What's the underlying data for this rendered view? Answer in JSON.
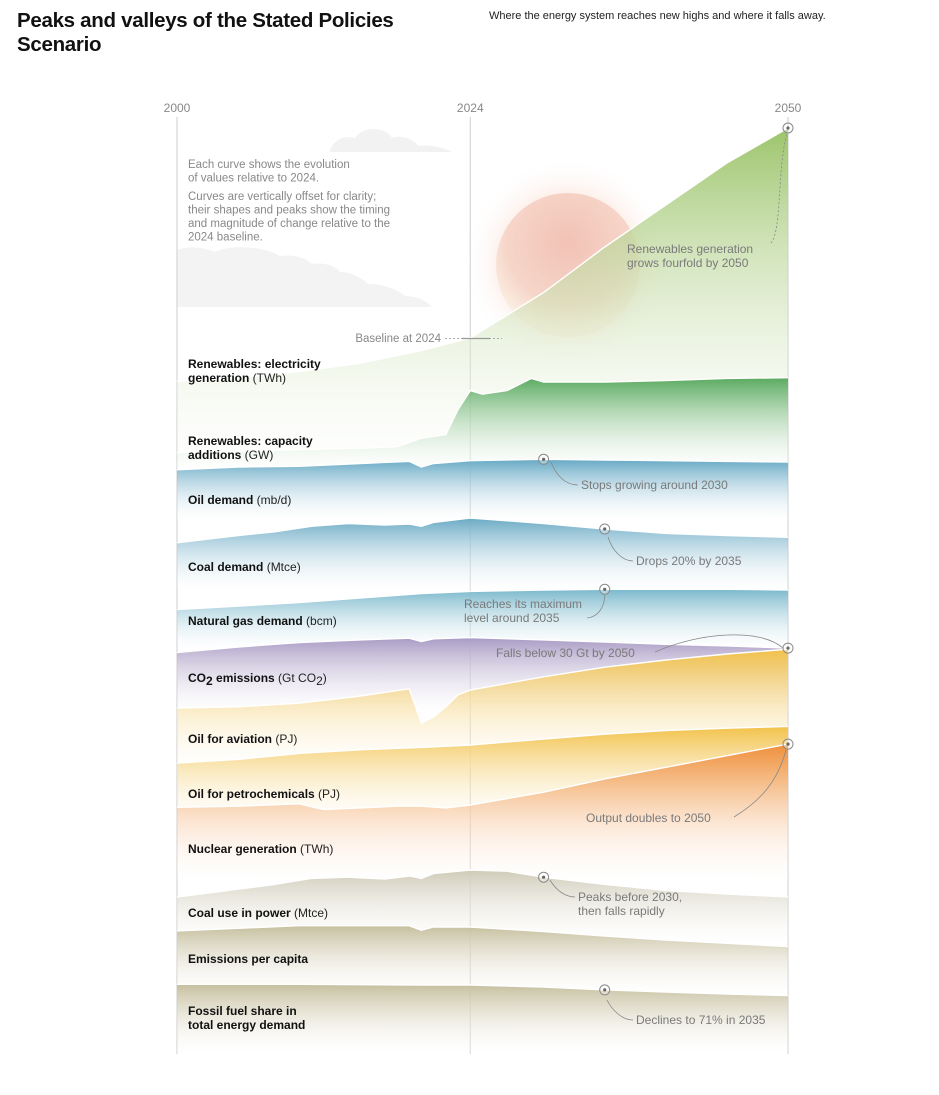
{
  "header": {
    "title": "Peaks and valleys of the Stated Policies Scenario",
    "subtitle": "Where the energy system reaches new highs and where it falls away."
  },
  "notes": [
    [
      "Each curve shows the evolution",
      "of values relative to 2024."
    ],
    [
      "Curves are vertically offset for clarity;",
      "their shapes and peaks show the timing",
      "and magnitude of change relative to the",
      "2024 baseline."
    ]
  ],
  "baseline_label": "Baseline at 2024",
  "chart_data": {
    "type": "area",
    "title": "Peaks and valleys of the Stated Policies Scenario",
    "xlabel": "",
    "ylabel": "",
    "x_ticks": [
      "2000",
      "2024",
      "2050"
    ],
    "xlim": [
      2000,
      2050
    ],
    "baseline_year": 2024,
    "value_note": "Values are relative to 2024 level (2024 = 1.0); curves vertically offset",
    "series": [
      {
        "name": "Renewables: electricity generation",
        "label_bold": [
          "Renewables: electricity",
          "generation"
        ],
        "unit": "(TWh)",
        "color": "#9cc46a",
        "years": [
          2000,
          2005,
          2010,
          2015,
          2020,
          2024,
          2030,
          2035,
          2040,
          2045,
          2050
        ],
        "values": [
          0.38,
          0.43,
          0.52,
          0.64,
          0.82,
          1.0,
          1.65,
          2.3,
          2.9,
          3.5,
          4.0
        ]
      },
      {
        "name": "Renewables: capacity additions",
        "label_bold": [
          "Renewables: capacity",
          "additions"
        ],
        "unit": "(GW)",
        "color": "#5aaa60",
        "years": [
          2000,
          2005,
          2010,
          2015,
          2018,
          2020,
          2022,
          2023,
          2024,
          2025,
          2027,
          2029,
          2030,
          2035,
          2040,
          2045,
          2050
        ],
        "values": [
          0.02,
          0.04,
          0.06,
          0.08,
          0.1,
          0.22,
          0.27,
          0.62,
          0.88,
          0.83,
          0.88,
          1.05,
          1.0,
          1.0,
          1.02,
          1.05,
          1.06
        ]
      },
      {
        "name": "Oil demand",
        "label_bold": [
          "Oil demand"
        ],
        "unit": "(mb/d)",
        "color": "#65a8c4",
        "years": [
          2000,
          2005,
          2010,
          2015,
          2019,
          2020,
          2021,
          2024,
          2030,
          2035,
          2040,
          2045,
          2050
        ],
        "values": [
          0.86,
          0.9,
          0.91,
          0.95,
          0.98,
          0.9,
          0.95,
          0.99,
          1.01,
          1.0,
          0.99,
          0.98,
          0.97
        ]
      },
      {
        "name": "Coal demand",
        "label_bold": [
          "Coal demand"
        ],
        "unit": "(Mtce)",
        "color": "#6aaac4",
        "years": [
          2000,
          2005,
          2008,
          2011,
          2014,
          2017,
          2019,
          2020,
          2021,
          2024,
          2030,
          2035,
          2040,
          2045,
          2050
        ],
        "values": [
          0.55,
          0.68,
          0.75,
          0.85,
          0.9,
          0.87,
          0.89,
          0.85,
          0.92,
          1.0,
          0.9,
          0.8,
          0.72,
          0.68,
          0.65
        ]
      },
      {
        "name": "Natural gas demand",
        "label_bold": [
          "Natural gas demand"
        ],
        "unit": "(bcm)",
        "color": "#7ab8cc",
        "years": [
          2000,
          2010,
          2020,
          2024,
          2030,
          2035,
          2040,
          2045,
          2050
        ],
        "values": [
          0.72,
          0.82,
          0.95,
          0.98,
          1.0,
          1.01,
          1.01,
          1.01,
          1.0
        ]
      },
      {
        "name": "CO2 emissions",
        "label_bold": [
          "CO2 emissions"
        ],
        "unit": "(Gt CO2)",
        "color": "#a99bc4",
        "years": [
          2000,
          2005,
          2010,
          2015,
          2019,
          2020,
          2021,
          2024,
          2030,
          2035,
          2040,
          2045,
          2050
        ],
        "values": [
          0.7,
          0.8,
          0.88,
          0.93,
          0.96,
          0.9,
          0.95,
          0.97,
          0.93,
          0.89,
          0.85,
          0.82,
          0.78
        ]
      },
      {
        "name": "Oil for aviation",
        "label_bold": [
          "Oil for aviation"
        ],
        "unit": "(PJ)",
        "color": "#f2c24a",
        "years": [
          2000,
          2005,
          2010,
          2015,
          2019,
          2020,
          2021,
          2022,
          2023,
          2024,
          2030,
          2035,
          2040,
          2045,
          2050
        ],
        "values": [
          0.7,
          0.72,
          0.78,
          0.9,
          1.02,
          0.45,
          0.55,
          0.72,
          0.92,
          1.0,
          1.22,
          1.38,
          1.5,
          1.6,
          1.68
        ]
      },
      {
        "name": "Oil for petrochemicals",
        "label_bold": [
          "Oil for petrochemicals"
        ],
        "unit": "(PJ)",
        "color": "#f2c24a",
        "years": [
          2000,
          2005,
          2008,
          2010,
          2015,
          2020,
          2024,
          2030,
          2035,
          2040,
          2045,
          2050
        ],
        "values": [
          0.7,
          0.76,
          0.82,
          0.86,
          0.92,
          0.96,
          1.0,
          1.1,
          1.18,
          1.24,
          1.28,
          1.31
        ]
      },
      {
        "name": "Nuclear generation",
        "label_bold": [
          "Nuclear generation"
        ],
        "unit": "(TWh)",
        "color": "#ef8f3e",
        "years": [
          2000,
          2005,
          2010,
          2012,
          2015,
          2018,
          2020,
          2022,
          2024,
          2030,
          2035,
          2040,
          2045,
          2050
        ],
        "values": [
          0.96,
          0.98,
          1.02,
          0.92,
          0.95,
          0.98,
          0.98,
          0.95,
          1.0,
          1.22,
          1.45,
          1.65,
          1.85,
          2.05
        ]
      },
      {
        "name": "Coal use in power",
        "label_bold": [
          "Coal use in power"
        ],
        "unit": "(Mtce)",
        "color": "#cfcbb8",
        "years": [
          2000,
          2005,
          2008,
          2011,
          2014,
          2017,
          2019,
          2020,
          2021,
          2024,
          2027,
          2030,
          2035,
          2040,
          2045,
          2050
        ],
        "values": [
          0.55,
          0.68,
          0.76,
          0.86,
          0.88,
          0.85,
          0.9,
          0.86,
          0.94,
          1.0,
          0.98,
          0.88,
          0.76,
          0.66,
          0.6,
          0.55
        ]
      },
      {
        "name": "Emissions per capita",
        "label_bold": [
          "Emissions per capita"
        ],
        "unit": "",
        "color": "#c6bf9e",
        "years": [
          2000,
          2005,
          2010,
          2015,
          2019,
          2020,
          2021,
          2024,
          2030,
          2035,
          2040,
          2045,
          2050
        ],
        "values": [
          0.94,
          0.98,
          1.02,
          1.02,
          1.02,
          0.95,
          1.0,
          1.0,
          0.93,
          0.86,
          0.8,
          0.75,
          0.7
        ]
      },
      {
        "name": "Fossil fuel share in total energy demand",
        "label_bold": [
          "Fossil fuel share in",
          "total energy demand"
        ],
        "unit": "",
        "color": "#c6bf9e",
        "years": [
          2000,
          2010,
          2020,
          2024,
          2030,
          2035,
          2040,
          2045,
          2050
        ],
        "values": [
          1.01,
          1.01,
          1.0,
          1.0,
          0.97,
          0.93,
          0.9,
          0.87,
          0.85
        ]
      }
    ],
    "annotations": [
      {
        "series": "Renewables: electricity generation",
        "year": 2050,
        "text": [
          "Renewables generation",
          "grows fourfold by 2050"
        ]
      },
      {
        "series": "Oil demand",
        "year": 2030,
        "text": [
          "Stops growing around 2030"
        ]
      },
      {
        "series": "Coal demand",
        "year": 2035,
        "text": [
          "Drops 20% by 2035"
        ]
      },
      {
        "series": "Natural gas demand",
        "year": 2035,
        "text": [
          "Reaches its maximum",
          "level around 2035"
        ]
      },
      {
        "series": "CO2 emissions",
        "year": 2050,
        "text": [
          "Falls below 30 Gt by 2050"
        ]
      },
      {
        "series": "Nuclear generation",
        "year": 2050,
        "text": [
          "Output doubles to 2050"
        ]
      },
      {
        "series": "Coal use in power",
        "year": 2030,
        "text": [
          "Peaks before 2030,",
          "then falls rapidly"
        ]
      },
      {
        "series": "Fossil fuel share in total energy demand",
        "year": 2035,
        "text": [
          "Declines to 71% in 2035"
        ]
      }
    ]
  }
}
